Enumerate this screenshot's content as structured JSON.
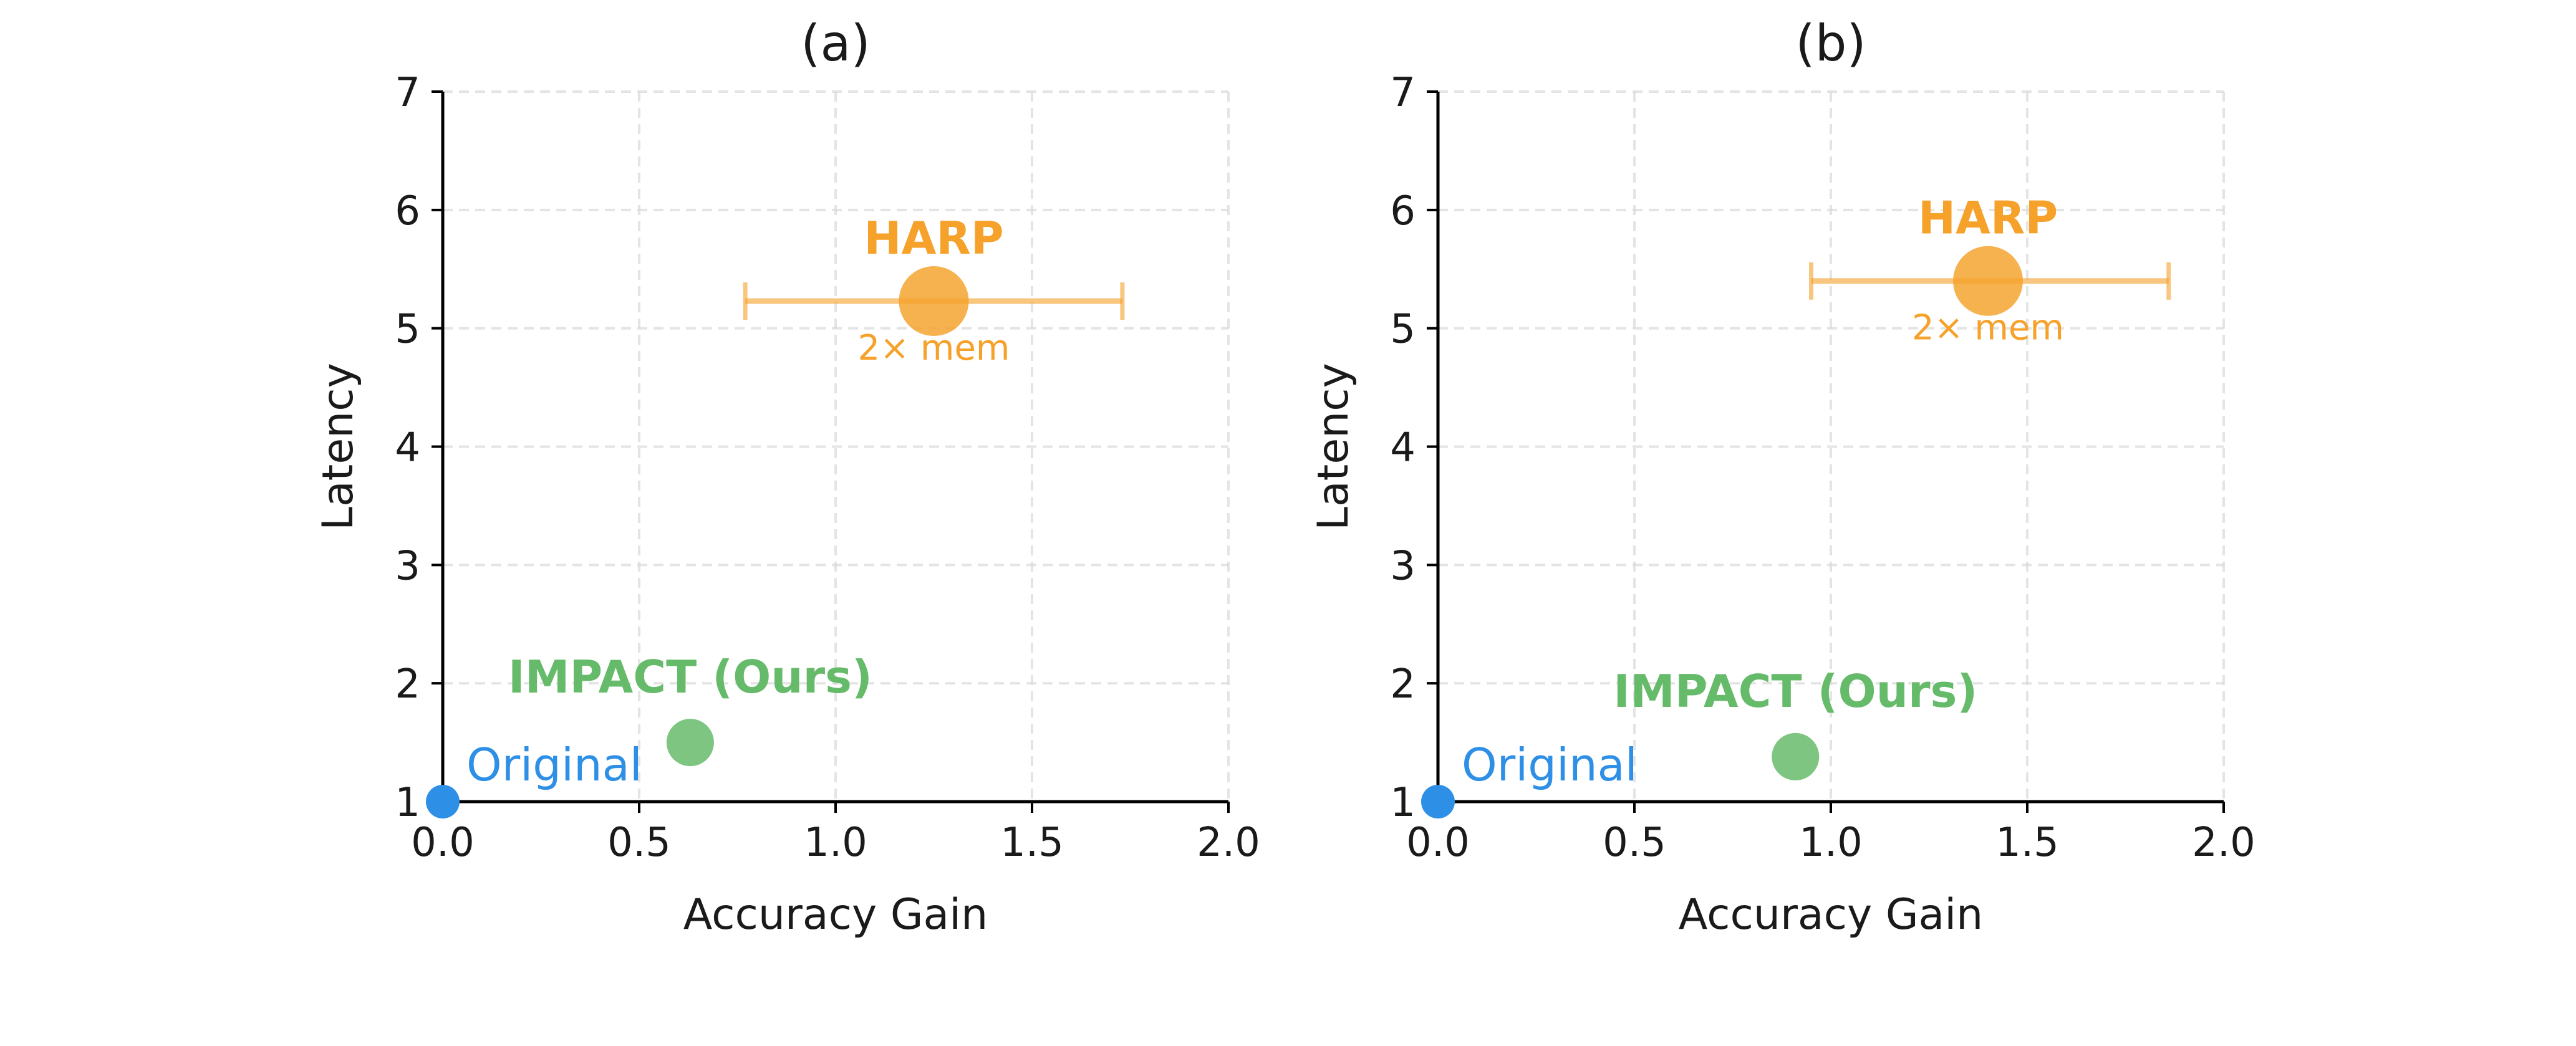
{
  "colors": {
    "original": "#2e8fe6",
    "impact": "#66bb6a",
    "harp": "#f5a12a",
    "axis": "#000000",
    "grid": "#d9d9d9",
    "text": "#1a1a1a"
  },
  "chart_data": [
    {
      "type": "scatter",
      "title": "(a)",
      "xlabel": "Accuracy Gain",
      "ylabel": "Latency",
      "xlim": [
        0,
        2
      ],
      "ylim": [
        1,
        7
      ],
      "xticks": [
        0,
        0.5,
        1,
        1.5,
        2
      ],
      "xtick_labels": [
        "0.0",
        "0.5",
        "1.0",
        "1.5",
        "2.0"
      ],
      "yticks": [
        1,
        2,
        3,
        4,
        5,
        6,
        7
      ],
      "ytick_labels": [
        "1",
        "2",
        "3",
        "4",
        "5",
        "6",
        "7"
      ],
      "grid": true,
      "points": [
        {
          "name": "Original",
          "label": "Original",
          "x": 0.0,
          "y": 1.0,
          "color_key": "original",
          "bold": false
        },
        {
          "name": "IMPACT",
          "label": "IMPACT (Ours)",
          "x": 0.63,
          "y": 1.5,
          "color_key": "impact",
          "bold": true
        },
        {
          "name": "HARP",
          "label": "HARP",
          "sublabel": "2× mem",
          "x": 1.25,
          "y": 5.23,
          "xerr": [
            0.77,
            1.73
          ],
          "color_key": "harp",
          "bold": true
        }
      ]
    },
    {
      "type": "scatter",
      "title": "(b)",
      "xlabel": "Accuracy Gain",
      "ylabel": "Latency",
      "xlim": [
        0,
        2
      ],
      "ylim": [
        1,
        7
      ],
      "xticks": [
        0,
        0.5,
        1,
        1.5,
        2
      ],
      "xtick_labels": [
        "0.0",
        "0.5",
        "1.0",
        "1.5",
        "2.0"
      ],
      "yticks": [
        1,
        2,
        3,
        4,
        5,
        6,
        7
      ],
      "ytick_labels": [
        "1",
        "2",
        "3",
        "4",
        "5",
        "6",
        "7"
      ],
      "grid": true,
      "points": [
        {
          "name": "Original",
          "label": "Original",
          "x": 0.0,
          "y": 1.0,
          "color_key": "original",
          "bold": false
        },
        {
          "name": "IMPACT",
          "label": "IMPACT (Ours)",
          "x": 0.91,
          "y": 1.38,
          "color_key": "impact",
          "bold": true
        },
        {
          "name": "HARP",
          "label": "HARP",
          "sublabel": "2× mem",
          "x": 1.4,
          "y": 5.4,
          "xerr": [
            0.95,
            1.86
          ],
          "color_key": "harp",
          "bold": true
        }
      ]
    }
  ]
}
